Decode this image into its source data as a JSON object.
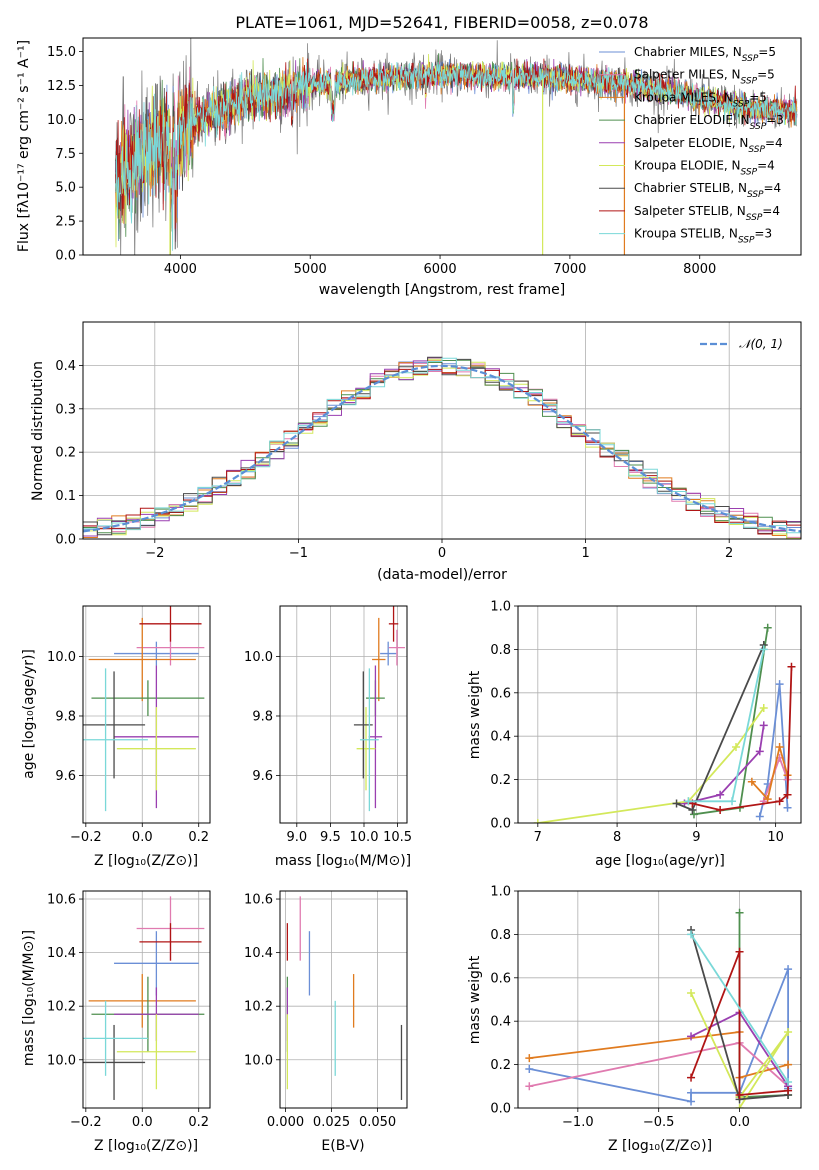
{
  "colors": {
    "Chabrier MILES": "#6b8fd6",
    "Salpeter MILES": "#e07bb0",
    "Kroupa MILES": "#e07b1f",
    "Chabrier ELODIE": "#4f8f4f",
    "Salpeter ELODIE": "#9a3fb0",
    "Kroupa ELODIE": "#d3e85a",
    "Chabrier STELIB": "#4a4a4a",
    "Salpeter STELIB": "#b01515",
    "Kroupa STELIB": "#7ad8d8",
    "normal": "#5b8fd6"
  },
  "chart_data": [
    {
      "id": "spectrum",
      "type": "line",
      "title": "PLATE=1061, MJD=52641, FIBERID=0058, z=0.078",
      "xlabel": "wavelength [Angstrom, rest frame]",
      "ylabel": "Flux [fλ10⁻¹⁷ erg cm⁻² s⁻¹ A⁻¹]",
      "xlim": [
        3250,
        8780
      ],
      "ylim": [
        0,
        16
      ],
      "xticks": [
        "4000",
        "5000",
        "6000",
        "7000",
        "8000"
      ],
      "yticks": [
        "0.0",
        "2.5",
        "5.0",
        "7.5",
        "10.0",
        "12.5",
        "15.0"
      ],
      "legend_position": "right",
      "legend": [
        {
          "label": "Chabrier MILES, N",
          "sub": "SSP",
          "tail": "=5"
        },
        {
          "label": "Salpeter MILES, N",
          "sub": "SSP",
          "tail": "=5"
        },
        {
          "label": "Kroupa MILES, N",
          "sub": "SSP",
          "tail": "=5"
        },
        {
          "label": "Chabrier ELODIE, N",
          "sub": "SSP",
          "tail": "=3"
        },
        {
          "label": "Salpeter ELODIE, N",
          "sub": "SSP",
          "tail": "=4"
        },
        {
          "label": "Kroupa ELODIE, N",
          "sub": "SSP",
          "tail": "=4"
        },
        {
          "label": "Chabrier STELIB, N",
          "sub": "SSP",
          "tail": "=4"
        },
        {
          "label": "Salpeter STELIB, N",
          "sub": "SSP",
          "tail": "=4"
        },
        {
          "label": "Kroupa STELIB, N",
          "sub": "SSP",
          "tail": "=3"
        }
      ],
      "continuum": [
        [
          3500,
          5.5
        ],
        [
          3700,
          7.5
        ],
        [
          4000,
          9.2
        ],
        [
          4200,
          10.2
        ],
        [
          4500,
          11.5
        ],
        [
          5000,
          12.5
        ],
        [
          5500,
          13.0
        ],
        [
          6000,
          13.3
        ],
        [
          6500,
          13.2
        ],
        [
          7000,
          13.0
        ],
        [
          7500,
          12.6
        ],
        [
          8000,
          11.5
        ],
        [
          8400,
          10.8
        ],
        [
          8750,
          10.6
        ]
      ]
    },
    {
      "id": "residuals",
      "type": "histogram",
      "xlabel": "(data-model)/error",
      "ylabel": "Normed distribution",
      "xlim": [
        -2.5,
        2.5
      ],
      "ylim": [
        0,
        0.5
      ],
      "xticks": [
        "−2",
        "−1",
        "0",
        "1",
        "2"
      ],
      "yticks": [
        "0.0",
        "0.1",
        "0.2",
        "0.3",
        "0.4"
      ],
      "legend": "𝒩(0, 1)",
      "legend_position": "top-right",
      "grid": true,
      "bin_width": 0.1
    },
    {
      "id": "age-vs-Z",
      "type": "errorbar",
      "xlabel": "Z [log₁₀(Z/Z⊙)]",
      "ylabel": "age  [log₁₀(age/yr)]",
      "xlim": [
        -0.21,
        0.24
      ],
      "ylim": [
        9.44,
        10.17
      ],
      "xticks": [
        "−0.2",
        "0.0",
        "0.2"
      ],
      "yticks": [
        "9.6",
        "9.8",
        "10.0"
      ],
      "grid": true
    },
    {
      "id": "age-vs-mass",
      "type": "errorbar",
      "xlabel": "mass [log₁₀(M/M⊙)]",
      "xlim": [
        8.75,
        10.64
      ],
      "ylim": [
        9.44,
        10.17
      ],
      "xticks": [
        "9.0",
        "9.5",
        "10.0",
        "10.5"
      ],
      "yticks": [
        "9.6",
        "9.8",
        "10.0"
      ],
      "grid": true
    },
    {
      "id": "weight-vs-age",
      "type": "line",
      "xlabel": "age  [log₁₀(age/yr)]",
      "ylabel": "mass weight",
      "xlim": [
        6.75,
        10.32
      ],
      "ylim": [
        0,
        1
      ],
      "xticks": [
        "7",
        "8",
        "9",
        "10"
      ],
      "yticks": [
        "0.0",
        "0.2",
        "0.4",
        "0.6",
        "0.8",
        "1.0"
      ],
      "grid": true
    },
    {
      "id": "mass-vs-Z",
      "type": "errorbar",
      "xlabel": "Z [log₁₀(Z/Z⊙)]",
      "ylabel": "mass [log₁₀(M/M⊙)]",
      "xlim": [
        -0.21,
        0.24
      ],
      "ylim": [
        9.82,
        10.63
      ],
      "xticks": [
        "−0.2",
        "0.0",
        "0.2"
      ],
      "yticks": [
        "10.0",
        "10.2",
        "10.4",
        "10.6"
      ],
      "grid": true
    },
    {
      "id": "mass-vs-EBV",
      "type": "errorbar",
      "xlabel": "E(B-V)",
      "xlim": [
        -0.003,
        0.066
      ],
      "ylim": [
        9.82,
        10.63
      ],
      "xticks": [
        "0.000",
        "0.025",
        "0.050"
      ],
      "yticks": [
        "10.0",
        "10.2",
        "10.4",
        "10.6"
      ],
      "grid": true
    },
    {
      "id": "weight-vs-Z",
      "type": "line",
      "xlabel": "Z [log₁₀(Z/Z⊙)]",
      "ylabel": "mass weight",
      "xlim": [
        -1.37,
        0.38
      ],
      "ylim": [
        0,
        1
      ],
      "xticks": [
        "−1.0",
        "−0.5",
        "0.0"
      ],
      "yticks": [
        "0.0",
        "0.2",
        "0.4",
        "0.6",
        "0.8",
        "1.0"
      ],
      "grid": true
    }
  ],
  "errorbars": {
    "Chabrier MILES": {
      "Z": [
        0.05,
        0.15
      ],
      "age": [
        10.01,
        0.04
      ],
      "mass": [
        10.36,
        0.12
      ],
      "ebv": 0.013
    },
    "Salpeter MILES": {
      "Z": [
        0.1,
        0.12
      ],
      "age": [
        10.03,
        0.06
      ],
      "mass": [
        10.49,
        0.12
      ],
      "ebv": 0.008
    },
    "Kroupa MILES": {
      "Z": [
        0.0,
        0.19
      ],
      "age": [
        9.99,
        0.14
      ],
      "mass": [
        10.22,
        0.1
      ],
      "ebv": 0.037
    },
    "Chabrier ELODIE": {
      "Z": [
        0.02,
        0.2
      ],
      "age": [
        9.86,
        0.06
      ],
      "mass": [
        10.17,
        0.14
      ],
      "ebv": 0.001
    },
    "Salpeter ELODIE": {
      "Z": [
        0.05,
        0.15
      ],
      "age": [
        9.73,
        0.24
      ],
      "mass": [
        10.17,
        0.1
      ],
      "ebv": 0.001
    },
    "Kroupa ELODIE": {
      "Z": [
        0.05,
        0.14
      ],
      "age": [
        9.69,
        0.14
      ],
      "mass": [
        10.03,
        0.14
      ],
      "ebv": 0.001
    },
    "Chabrier STELIB": {
      "Z": [
        -0.1,
        0.11
      ],
      "age": [
        9.77,
        0.18
      ],
      "mass": [
        9.99,
        0.14
      ],
      "ebv": 0.063
    },
    "Salpeter STELIB": {
      "Z": [
        0.1,
        0.11
      ],
      "age": [
        10.11,
        0.06
      ],
      "mass": [
        10.44,
        0.07
      ],
      "ebv": 0.001
    },
    "Kroupa STELIB": {
      "Z": [
        -0.13,
        0.15
      ],
      "age": [
        9.72,
        0.24
      ],
      "mass": [
        10.08,
        0.14
      ],
      "ebv": 0.027
    }
  },
  "weight_age": {
    "Chabrier MILES": [
      [
        9.8,
        0.03
      ],
      [
        9.9,
        0.18
      ],
      [
        10.05,
        0.64
      ],
      [
        10.15,
        0.07
      ]
    ],
    "Salpeter MILES": [
      [
        9.85,
        0.1
      ],
      [
        10.05,
        0.3
      ],
      [
        10.15,
        0.2
      ]
    ],
    "Kroupa MILES": [
      [
        9.7,
        0.19
      ],
      [
        9.9,
        0.11
      ],
      [
        10.05,
        0.35
      ],
      [
        10.15,
        0.22
      ]
    ],
    "Chabrier ELODIE": [
      [
        8.97,
        0.04
      ],
      [
        9.55,
        0.07
      ],
      [
        9.9,
        0.9
      ]
    ],
    "Salpeter ELODIE": [
      [
        8.85,
        0.09
      ],
      [
        9.3,
        0.13
      ],
      [
        9.8,
        0.33
      ],
      [
        9.85,
        0.45
      ]
    ],
    "Kroupa ELODIE": [
      [
        7.0,
        0.0
      ],
      [
        8.9,
        0.1
      ],
      [
        9.5,
        0.35
      ],
      [
        9.85,
        0.53
      ]
    ],
    "Chabrier STELIB": [
      [
        8.75,
        0.09
      ],
      [
        8.95,
        0.06
      ],
      [
        9.85,
        0.82
      ]
    ],
    "Salpeter STELIB": [
      [
        8.95,
        0.09
      ],
      [
        9.3,
        0.06
      ],
      [
        10.05,
        0.1
      ],
      [
        10.15,
        0.13
      ],
      [
        10.2,
        0.72
      ]
    ],
    "Kroupa STELIB": [
      [
        8.9,
        0.1
      ],
      [
        9.45,
        0.1
      ],
      [
        9.85,
        0.8
      ]
    ]
  },
  "weight_Z": {
    "Chabrier MILES": [
      [
        -1.3,
        0.18
      ],
      [
        -0.3,
        0.03
      ],
      [
        -0.3,
        0.07
      ],
      [
        0.0,
        0.07
      ],
      [
        0.3,
        0.64
      ],
      [
        0.3,
        0.09
      ]
    ],
    "Salpeter MILES": [
      [
        -1.3,
        0.1
      ],
      [
        0.0,
        0.3
      ],
      [
        0.3,
        0.1
      ]
    ],
    "Kroupa MILES": [
      [
        -1.3,
        0.23
      ],
      [
        0.0,
        0.35
      ],
      [
        0.0,
        0.14
      ],
      [
        0.3,
        0.2
      ]
    ],
    "Chabrier ELODIE": [
      [
        0.0,
        0.9
      ],
      [
        0.0,
        0.05
      ],
      [
        0.3,
        0.06
      ]
    ],
    "Salpeter ELODIE": [
      [
        -0.3,
        0.33
      ],
      [
        0.0,
        0.44
      ],
      [
        0.3,
        0.1
      ]
    ],
    "Kroupa ELODIE": [
      [
        -0.3,
        0.53
      ],
      [
        0.0,
        0.05
      ],
      [
        0.3,
        0.35
      ],
      [
        0.0,
        0.0
      ]
    ],
    "Chabrier STELIB": [
      [
        -0.3,
        0.82
      ],
      [
        0.0,
        0.04
      ],
      [
        0.3,
        0.06
      ]
    ],
    "Salpeter STELIB": [
      [
        -0.3,
        0.14
      ],
      [
        0.0,
        0.72
      ],
      [
        0.0,
        0.06
      ],
      [
        0.3,
        0.08
      ]
    ],
    "Kroupa STELIB": [
      [
        -0.3,
        0.8
      ],
      [
        0.3,
        0.12
      ]
    ]
  }
}
